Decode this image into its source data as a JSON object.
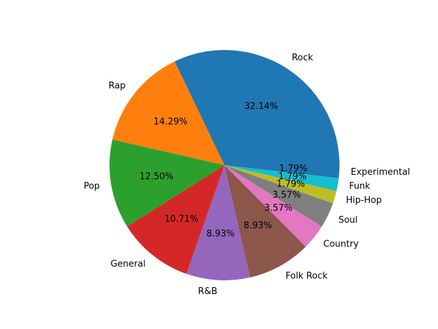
{
  "chart_data": {
    "type": "pie",
    "title": "",
    "start_angle_deg": 0,
    "direction": "counterclockwise",
    "slices": [
      {
        "label": "Rock",
        "value": 32.14,
        "pct_text": "32.14%",
        "color": "#1f77b4"
      },
      {
        "label": "Rap",
        "value": 14.29,
        "pct_text": "14.29%",
        "color": "#ff7f0e"
      },
      {
        "label": "Pop",
        "value": 12.5,
        "pct_text": "12.50%",
        "color": "#2ca02c"
      },
      {
        "label": "General",
        "value": 10.71,
        "pct_text": "10.71%",
        "color": "#d62728"
      },
      {
        "label": "R&B",
        "value": 8.93,
        "pct_text": "8.93%",
        "color": "#9467bd"
      },
      {
        "label": "Folk Rock",
        "value": 8.93,
        "pct_text": "8.93%",
        "color": "#8c564b"
      },
      {
        "label": "Country",
        "value": 3.57,
        "pct_text": "3.57%",
        "color": "#e377c2"
      },
      {
        "label": "Soul",
        "value": 3.57,
        "pct_text": "3.57%",
        "color": "#7f7f7f"
      },
      {
        "label": "Hip-Hop",
        "value": 1.79,
        "pct_text": "1.79%",
        "color": "#bcbd22"
      },
      {
        "label": "Funk",
        "value": 1.79,
        "pct_text": "1.79%",
        "color": "#17becf"
      },
      {
        "label": "Experimental",
        "value": 1.79,
        "pct_text": "1.79%",
        "color": "#1f77b4"
      }
    ]
  }
}
